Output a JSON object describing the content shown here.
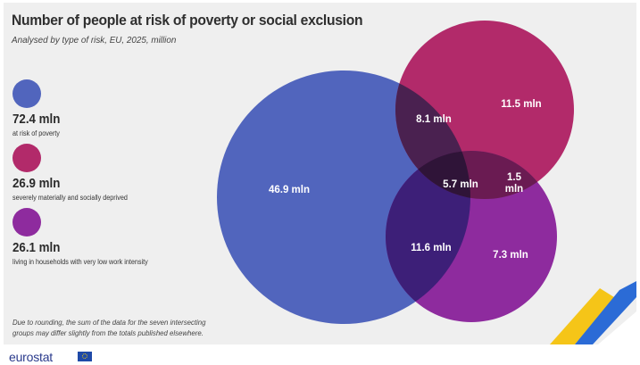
{
  "header": {
    "title": "Number of people at risk of poverty or social exclusion",
    "subtitle": "Analysed by type of risk, EU, 2025, million"
  },
  "legend": [
    {
      "value": "72.4 mln",
      "desc": "at risk of poverty",
      "color": "#5165bd"
    },
    {
      "value": "26.9 mln",
      "desc": "severely materially and socially deprived",
      "color": "#b22a6a"
    },
    {
      "value": "26.1 mln",
      "desc": "living in households with very low work intensity",
      "color": "#8e2b9e"
    }
  ],
  "venn": {
    "regions": {
      "poverty_only": "46.9 mln",
      "poverty_deprived": "8.1 mln",
      "deprived_only": "11.5 mln",
      "all_three": "5.7 mln",
      "deprived_lowwork_line1": "1.5",
      "deprived_lowwork_line2": "mln",
      "poverty_lowwork": "11.6 mln",
      "lowwork_only": "7.3 mln"
    },
    "colors": {
      "poverty": "#5165bd",
      "deprived": "#b22a6a",
      "lowwork": "#8e2b9e",
      "poverty_deprived": "#4a2150",
      "poverty_lowwork": "#3d1f78",
      "deprived_lowwork": "#6a1b52",
      "all_three": "#2f1438"
    }
  },
  "note": "Due to rounding, the sum of the data for the seven intersecting groups may differ slightly from the totals published elsewhere.",
  "footer": {
    "logo_text": "eurostat",
    "logo_icon": "eu-flag-icon"
  }
}
